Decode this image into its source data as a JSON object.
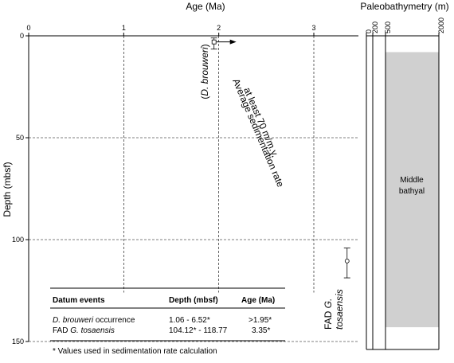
{
  "chart_data": [
    {
      "type": "scatter",
      "title": "",
      "xlabel": "Age (Ma)",
      "ylabel": "Depth (mbsf)",
      "xlim": [
        0,
        3.5
      ],
      "ylim": [
        0,
        150
      ],
      "y_inverted": true,
      "x_ticks": [
        "0",
        "1",
        "2",
        "3"
      ],
      "y_ticks": [
        "0",
        "50",
        "100",
        "150"
      ],
      "grid": "dashed",
      "series": [
        {
          "points": [
            {
              "x": 1.95,
              "y": 3.0,
              "ymin": 1.06,
              "ymax": 6.52,
              "marker": "open-square",
              "arrow": "right",
              "label": "(D. brouweri)"
            },
            {
              "x": 3.35,
              "y": 110.5,
              "ymin": 104.12,
              "ymax": 118.77,
              "marker": "open-circle",
              "label": "FAD G. tosaensis"
            }
          ]
        }
      ],
      "annotations": [
        {
          "text": "Average sedimentation rate at least 70 m/m.y."
        }
      ]
    },
    {
      "type": "area",
      "title": "",
      "xlabel": "Paleobathymetry (m)",
      "x_ticks": [
        "0",
        "200",
        "500",
        "2000"
      ],
      "ylim": [
        0,
        150
      ],
      "y_inverted": true,
      "zones": [
        {
          "label": "Middle bathyal",
          "depth_top": 8,
          "depth_bottom": 143,
          "water_depth_min": 500,
          "water_depth_max": 2000,
          "color": "#d0d0d0"
        }
      ]
    }
  ],
  "table": {
    "headers": [
      "Datum events",
      "Depth (mbsf)",
      "Age (Ma)"
    ],
    "rows": [
      {
        "event_italic": "D. brouweri",
        "event_rest": " occurrence",
        "depth": "1.06 - 6.52*",
        "age": ">1.95*"
      },
      {
        "event_pre": "FAD ",
        "event_italic": "G. tosaensis",
        "event_rest": "",
        "depth": "104.12* - 118.77",
        "age": "3.35*"
      }
    ],
    "footnote": "* Values used in sedimentation rate calculation"
  },
  "labels": {
    "brouweri_paren_open": "(",
    "brouweri": "D. brouweri",
    "brouweri_paren_close": ")",
    "rate_line1": "Average sedimentation rate",
    "rate_line2": "at least 70 m/m.y.",
    "fad_prefix": "FAD ",
    "fad_g": "G.",
    "fad_species": "tosaensis",
    "zone_line1": "Middle",
    "zone_line2": "bathyal"
  },
  "colors": {
    "zone_fill": "#d0d0d0",
    "axis": "#000000"
  }
}
